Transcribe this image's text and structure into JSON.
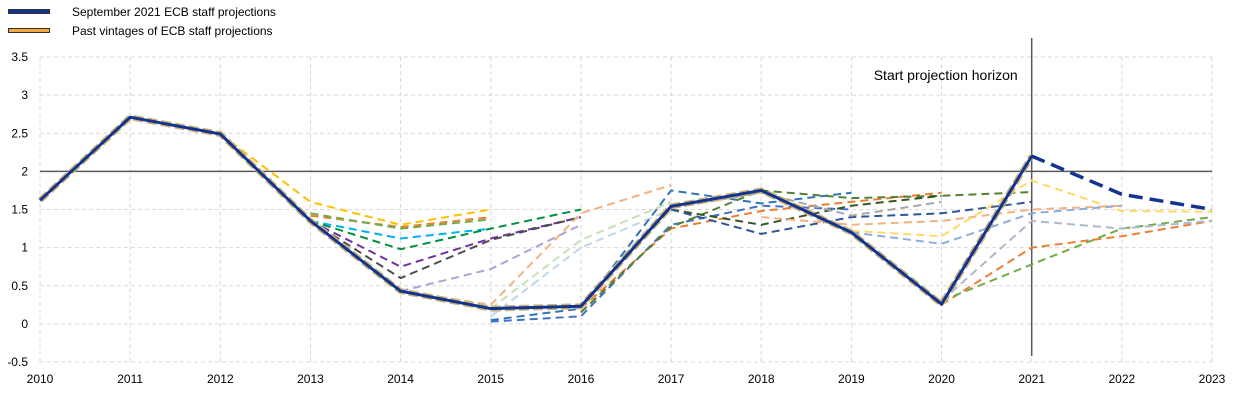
{
  "legend": {
    "current_label": "September 2021 ECB staff projections",
    "past_label": "Past vintages of ECB staff projections"
  },
  "colors": {
    "current": "#12348f",
    "past": "#f3a73f",
    "reference_line": "#595959",
    "grid": "#d9d9d9"
  },
  "chart_data": {
    "type": "line",
    "title": "",
    "xlabel": "",
    "ylabel": "",
    "x": [
      2010,
      2011,
      2012,
      2013,
      2014,
      2015,
      2016,
      2017,
      2018,
      2019,
      2020,
      2021,
      2022,
      2023
    ],
    "x_ticks": [
      "2010",
      "2011",
      "2012",
      "2013",
      "2014",
      "2015",
      "2016",
      "2017",
      "2018",
      "2019",
      "2020",
      "2021",
      "2022",
      "2023"
    ],
    "ylim": [
      -0.5,
      3.5
    ],
    "y_ticks": [
      "-0.5",
      "0",
      "0.5",
      "1",
      "1.5",
      "2",
      "2.5",
      "3",
      "3.5"
    ],
    "grid": true,
    "legend_position": "top-left",
    "reference_y": 2,
    "projection_start_x": 2021,
    "annotation": "Start projection horizon",
    "series": [
      {
        "name": "September 2021 ECB staff projections",
        "color": "#12348f",
        "points": [
          [
            2010,
            1.62
          ],
          [
            2011,
            2.71
          ],
          [
            2012,
            2.49
          ],
          [
            2013,
            1.35
          ],
          [
            2014,
            0.43
          ],
          [
            2015,
            0.2
          ],
          [
            2016,
            0.23
          ],
          [
            2017,
            1.54
          ],
          [
            2018,
            1.75
          ],
          [
            2019,
            1.2
          ],
          [
            2020,
            0.26
          ],
          [
            2021,
            2.2
          ]
        ],
        "projection": [
          [
            2021,
            2.2
          ],
          [
            2022,
            1.7
          ],
          [
            2023,
            1.5
          ]
        ]
      }
    ],
    "past_vintages": [
      {
        "color": "#ffc000",
        "points": [
          [
            2012,
            2.49
          ],
          [
            2013,
            1.6
          ],
          [
            2014,
            1.3
          ],
          [
            2015,
            1.5
          ]
        ]
      },
      {
        "color": "#ed7d31",
        "points": [
          [
            2013,
            1.42
          ],
          [
            2014,
            1.27
          ],
          [
            2015,
            1.4
          ]
        ]
      },
      {
        "color": "#70ad47",
        "points": [
          [
            2013,
            1.45
          ],
          [
            2014,
            1.25
          ],
          [
            2015,
            1.37
          ]
        ]
      },
      {
        "color": "#00b0f0",
        "points": [
          [
            2013,
            1.35
          ],
          [
            2014,
            1.12
          ],
          [
            2015,
            1.25
          ]
        ]
      },
      {
        "color": "#00913f",
        "points": [
          [
            2013,
            1.35
          ],
          [
            2014,
            0.98
          ],
          [
            2015,
            1.25
          ],
          [
            2016,
            1.5
          ]
        ]
      },
      {
        "color": "#7030a0",
        "points": [
          [
            2013,
            1.35
          ],
          [
            2014,
            0.75
          ],
          [
            2015,
            1.12
          ],
          [
            2016,
            1.4
          ]
        ]
      },
      {
        "color": "#4d4d4d",
        "points": [
          [
            2013,
            1.35
          ],
          [
            2014,
            0.6
          ],
          [
            2015,
            1.1
          ],
          [
            2016,
            1.4
          ]
        ]
      },
      {
        "color": "#a6a6d9",
        "points": [
          [
            2014,
            0.43
          ],
          [
            2015,
            0.72
          ],
          [
            2016,
            1.3
          ]
        ]
      },
      {
        "color": "#f4b183",
        "points": [
          [
            2014,
            0.43
          ],
          [
            2015,
            0.25
          ],
          [
            2016,
            1.45
          ],
          [
            2017,
            1.82
          ]
        ]
      },
      {
        "color": "#c5e0b4",
        "points": [
          [
            2015,
            0.2
          ],
          [
            2016,
            1.1
          ],
          [
            2017,
            1.6
          ]
        ]
      },
      {
        "color": "#bdd7ee",
        "points": [
          [
            2015,
            0.1
          ],
          [
            2016,
            1.0
          ],
          [
            2017,
            1.5
          ]
        ]
      },
      {
        "color": "#2e75b6",
        "points": [
          [
            2015,
            0.05
          ],
          [
            2016,
            0.2
          ],
          [
            2017,
            1.75
          ],
          [
            2018,
            1.58
          ],
          [
            2019,
            1.72
          ]
        ]
      },
      {
        "color": "#4472c4",
        "points": [
          [
            2015,
            0.03
          ],
          [
            2016,
            0.1
          ],
          [
            2017,
            1.3
          ],
          [
            2018,
            1.55
          ],
          [
            2019,
            1.5
          ]
        ]
      },
      {
        "color": "#ed7d31",
        "points": [
          [
            2016,
            0.2
          ],
          [
            2017,
            1.25
          ],
          [
            2018,
            1.48
          ],
          [
            2019,
            1.6
          ],
          [
            2020,
            1.72
          ]
        ]
      },
      {
        "color": "#548235",
        "points": [
          [
            2016,
            0.15
          ],
          [
            2017,
            1.27
          ],
          [
            2018,
            1.75
          ],
          [
            2019,
            1.65
          ],
          [
            2020,
            1.68
          ],
          [
            2021,
            1.73
          ]
        ]
      },
      {
        "color": "#375623",
        "points": [
          [
            2017,
            1.5
          ],
          [
            2018,
            1.3
          ],
          [
            2019,
            1.55
          ],
          [
            2020,
            1.68
          ]
        ]
      },
      {
        "color": "#2f5597",
        "points": [
          [
            2017,
            1.5
          ],
          [
            2018,
            1.18
          ],
          [
            2019,
            1.4
          ],
          [
            2020,
            1.45
          ],
          [
            2021,
            1.6
          ]
        ]
      },
      {
        "color": "#a5a5a5",
        "points": [
          [
            2017,
            1.52
          ],
          [
            2018,
            1.72
          ],
          [
            2019,
            1.42
          ],
          [
            2020,
            1.6
          ]
        ]
      },
      {
        "color": "#f4b183",
        "points": [
          [
            2018,
            1.4
          ],
          [
            2019,
            1.3
          ],
          [
            2020,
            1.35
          ],
          [
            2021,
            1.5
          ],
          [
            2022,
            1.55
          ]
        ]
      },
      {
        "color": "#ffd966",
        "points": [
          [
            2019,
            1.22
          ],
          [
            2020,
            1.15
          ],
          [
            2021,
            1.88
          ],
          [
            2022,
            1.48
          ],
          [
            2023,
            1.47
          ]
        ]
      },
      {
        "color": "#8faadc",
        "points": [
          [
            2019,
            1.2
          ],
          [
            2020,
            1.05
          ],
          [
            2021,
            1.45
          ],
          [
            2022,
            1.55
          ]
        ]
      },
      {
        "color": "#ed7d31",
        "points": [
          [
            2020,
            0.25
          ],
          [
            2021,
            1.0
          ],
          [
            2022,
            1.15
          ],
          [
            2023,
            1.35
          ]
        ]
      },
      {
        "color": "#70ad47",
        "points": [
          [
            2020,
            0.3
          ],
          [
            2021,
            0.78
          ],
          [
            2022,
            1.25
          ],
          [
            2023,
            1.4
          ]
        ]
      },
      {
        "color": "#adb9ca",
        "points": [
          [
            2020,
            0.3
          ],
          [
            2021,
            1.35
          ],
          [
            2022,
            1.25
          ],
          [
            2023,
            1.35
          ]
        ]
      }
    ]
  }
}
